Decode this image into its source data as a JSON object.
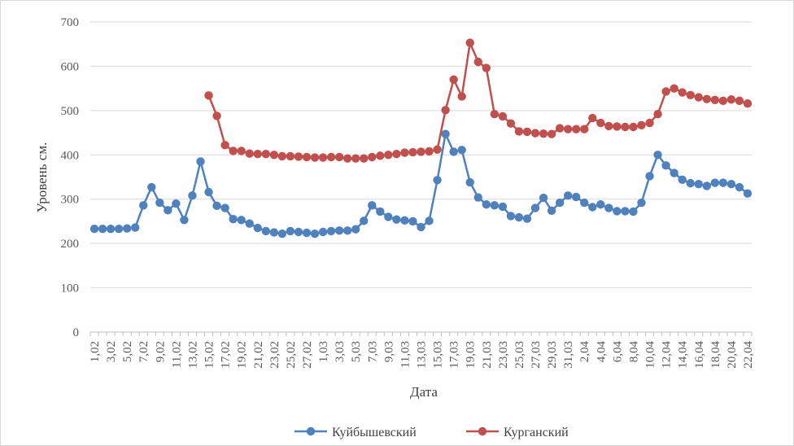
{
  "chart_data": {
    "type": "line",
    "xlabel": "Дата",
    "ylabel": "Уровень см.",
    "ylim": [
      0,
      700
    ],
    "yticks": [
      0,
      100,
      200,
      300,
      400,
      500,
      600,
      700
    ],
    "grid": true,
    "legend_position": "bottom",
    "categories": [
      "1,02",
      "2,02",
      "3,02",
      "4,02",
      "5,02",
      "6,02",
      "7,02",
      "8,02",
      "9,02",
      "10,02",
      "11,02",
      "12,02",
      "13,02",
      "14,02",
      "15,02",
      "16,02",
      "17,02",
      "18,02",
      "19,02",
      "20,02",
      "21,02",
      "22,02",
      "23,02",
      "24,02",
      "25,02",
      "26,02",
      "27,02",
      "28,02",
      "1,03",
      "2,03",
      "3,03",
      "4,03",
      "5,03",
      "6,03",
      "7,03",
      "8,03",
      "9,03",
      "10,03",
      "11,03",
      "12,03",
      "13,03",
      "14,03",
      "15,03",
      "16,03",
      "17,03",
      "18,03",
      "19,03",
      "20,03",
      "21,03",
      "22,03",
      "23,03",
      "24,03",
      "25,03",
      "26,03",
      "27,03",
      "28,03",
      "29,03",
      "30,03",
      "31,03",
      "1,04",
      "2,04",
      "3,04",
      "4,04",
      "5,04",
      "6,04",
      "7,04",
      "8,04",
      "9,04",
      "10,04",
      "11,04",
      "12,04",
      "13,04",
      "14,04",
      "15,04",
      "16,04",
      "17,04",
      "18,04",
      "19,04",
      "20,04",
      "21,04",
      "22,04"
    ],
    "tick_labels": [
      "1,02",
      "3,02",
      "5,02",
      "7,02",
      "9,02",
      "11,02",
      "13,02",
      "15,02",
      "17,02",
      "19,02",
      "21,02",
      "23,02",
      "25,02",
      "27,02",
      "1,03",
      "3,03",
      "5,03",
      "7,03",
      "9,03",
      "11,03",
      "13,03",
      "15,03",
      "17,03",
      "19,03",
      "21,03",
      "23,03",
      "25,03",
      "27,03",
      "29,03",
      "31,03",
      "2,04",
      "4,04",
      "6,04",
      "8,04",
      "10,04",
      "12,04",
      "14,04",
      "16,04",
      "18,04",
      "20,04",
      "22,04"
    ],
    "series": [
      {
        "name": "Куйбышевский",
        "color": "#4f81bd",
        "values": [
          233,
          233,
          233,
          233,
          234,
          236,
          286,
          327,
          292,
          275,
          290,
          253,
          308,
          385,
          316,
          285,
          280,
          255,
          253,
          245,
          235,
          228,
          225,
          222,
          228,
          226,
          224,
          222,
          226,
          228,
          229,
          229,
          232,
          251,
          286,
          272,
          260,
          254,
          252,
          250,
          237,
          251,
          343,
          447,
          407,
          411,
          338,
          304,
          288,
          286,
          283,
          262,
          259,
          256,
          280,
          303,
          274,
          292,
          308,
          305,
          292,
          282,
          288,
          280,
          273,
          273,
          272,
          292,
          352,
          400,
          376,
          359,
          344,
          336,
          334,
          330,
          337,
          337,
          334,
          327,
          313
        ]
      },
      {
        "name": "Курганский",
        "color": "#c0504d",
        "values": [
          null,
          null,
          null,
          null,
          null,
          null,
          null,
          null,
          null,
          null,
          null,
          null,
          null,
          null,
          534,
          488,
          422,
          409,
          409,
          403,
          402,
          402,
          400,
          397,
          397,
          396,
          395,
          394,
          394,
          395,
          395,
          392,
          392,
          392,
          395,
          398,
          400,
          402,
          405,
          406,
          407,
          408,
          412,
          501,
          570,
          532,
          653,
          610,
          596,
          492,
          487,
          471,
          453,
          452,
          449,
          448,
          447,
          460,
          458,
          458,
          458,
          483,
          472,
          465,
          464,
          463,
          463,
          467,
          472,
          492,
          543,
          550,
          541,
          535,
          530,
          526,
          524,
          522,
          525,
          522,
          516
        ]
      }
    ]
  }
}
